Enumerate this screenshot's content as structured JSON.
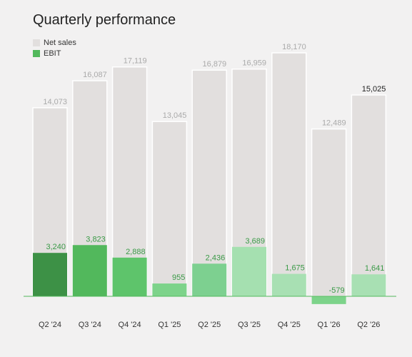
{
  "chart_data": {
    "type": "overlay-bar",
    "title": "Quarterly performance",
    "categories": [
      "Q2 '24",
      "Q3 '24",
      "Q4 '24",
      "Q1 '25",
      "Q2 '25",
      "Q3 '25",
      "Q4 '25",
      "Q1 '26",
      "Q2 '26"
    ],
    "series": [
      {
        "name": "Net sales",
        "color": "#e2dfde",
        "values": [
          14073,
          16087,
          17119,
          13045,
          16879,
          16959,
          18170,
          12489,
          15025
        ],
        "value_labels": [
          "14,073",
          "16,087",
          "17,119",
          "13,045",
          "16,879",
          "16,959",
          "18,170",
          "12,489",
          "15,025"
        ]
      },
      {
        "name": "EBIT",
        "color": "#52b85c",
        "colors": [
          "#3d9146",
          "#52b85c",
          "#5ec46b",
          "#7dd38a",
          "#7dd090",
          "#a5e0b0",
          "#a8e0b3",
          "#7dd38a",
          "#a8e0b3"
        ],
        "values": [
          3240,
          3823,
          2888,
          955,
          2436,
          3689,
          1675,
          -579,
          1641
        ],
        "value_labels": [
          "3,240",
          "3,823",
          "2,888",
          "955",
          "2,436",
          "3,689",
          "1,675",
          "-579",
          "1,641"
        ]
      }
    ]
  }
}
